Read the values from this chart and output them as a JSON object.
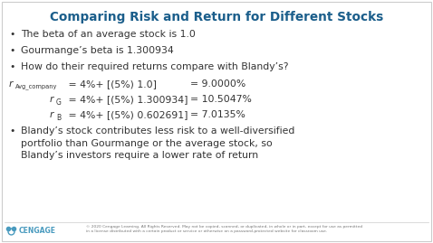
{
  "title": "Comparing Risk and Return for Different Stocks",
  "title_color": "#1B5E8B",
  "bg_color": "#FFFFFF",
  "text_color": "#333333",
  "bullet_points": [
    "The beta of an average stock is 1.0",
    "Gourmange’s beta is 1.300934",
    "How do their required returns compare with Blandy’s?"
  ],
  "last_bullet": "Blandy’s stock contributes less risk to a well-diversified\nportfolio than Gourmange or the average stock, so\nBlandy’s investors require a lower rate of return",
  "footer_text": "© 2020 Cengage Learning. All Rights Reserved. May not be copied, scanned, or duplicated, in whole or in part, except for use as permitted\nin a license distributed with a certain product or service or otherwise on a password-protected website for classroom use.",
  "cengage_color": "#4A9BBF",
  "border_color": "#CCCCCC",
  "title_fontsize": 9.8,
  "body_fontsize": 7.8,
  "sub_fontsize_large": 5.5,
  "sub_fontsize_small": 4.8
}
